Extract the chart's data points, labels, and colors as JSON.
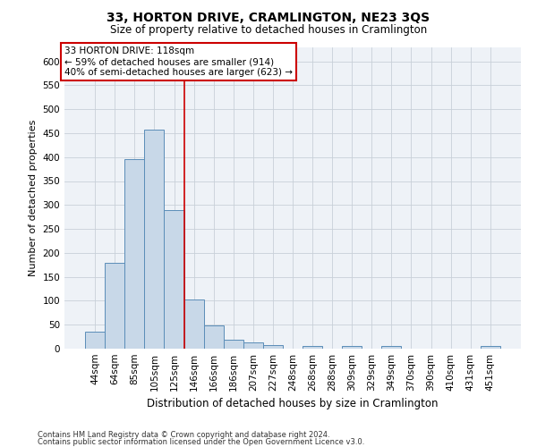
{
  "title": "33, HORTON DRIVE, CRAMLINGTON, NE23 3QS",
  "subtitle": "Size of property relative to detached houses in Cramlington",
  "xlabel": "Distribution of detached houses by size in Cramlington",
  "ylabel": "Number of detached properties",
  "footer_line1": "Contains HM Land Registry data © Crown copyright and database right 2024.",
  "footer_line2": "Contains public sector information licensed under the Open Government Licence v3.0.",
  "bar_labels": [
    "44sqm",
    "64sqm",
    "85sqm",
    "105sqm",
    "125sqm",
    "146sqm",
    "166sqm",
    "186sqm",
    "207sqm",
    "227sqm",
    "248sqm",
    "268sqm",
    "288sqm",
    "309sqm",
    "329sqm",
    "349sqm",
    "370sqm",
    "390sqm",
    "410sqm",
    "431sqm",
    "451sqm"
  ],
  "bar_values": [
    35,
    180,
    395,
    458,
    290,
    103,
    49,
    19,
    13,
    8,
    0,
    5,
    0,
    5,
    0,
    5,
    0,
    0,
    0,
    0,
    5
  ],
  "bar_color": "#c8d8e8",
  "bar_edge_color": "#5b8db8",
  "ylim": [
    0,
    630
  ],
  "yticks": [
    0,
    50,
    100,
    150,
    200,
    250,
    300,
    350,
    400,
    450,
    500,
    550,
    600
  ],
  "vline_x": 4.5,
  "vline_color": "#cc0000",
  "annotation_box_text": "33 HORTON DRIVE: 118sqm\n← 59% of detached houses are smaller (914)\n40% of semi-detached houses are larger (623) →",
  "box_color": "#ffffff",
  "box_edge_color": "#cc0000",
  "grid_color": "#c8d0d8",
  "background_color": "#eef2f7",
  "title_fontsize": 10,
  "subtitle_fontsize": 8.5,
  "ylabel_fontsize": 8,
  "xlabel_fontsize": 8.5,
  "tick_fontsize": 7.5,
  "annotation_fontsize": 7.5,
  "footer_fontsize": 6
}
